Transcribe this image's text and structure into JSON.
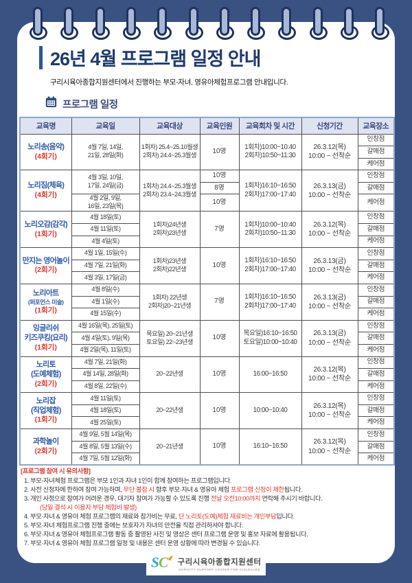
{
  "header": {
    "title": "26년 4월 프로그램 일정 안내",
    "subtitle": "구리시육아종합지원센터에서 진행하는 부모-자녀, 영유아체험프로그램 안내입니다.",
    "section_title": "프로그램 일정"
  },
  "colors": {
    "background_navy": "#3A5282",
    "title_navy": "#1E3A6E",
    "program_blue": "#2E5CA8",
    "alert_red": "#E2362B",
    "table_header_bg": "#DEE3F1"
  },
  "table": {
    "headers": [
      "교육명",
      "교육일",
      "교육대상",
      "교육인원",
      "교육회차 및 시간",
      "신청기간",
      "교육장소"
    ],
    "locations": [
      "인창점",
      "갈매점",
      "케어점"
    ],
    "rows": [
      {
        "name": "노리송(음악)",
        "session": "(4회기)",
        "dates": [
          "4월 7일, 14일,\n21일, 28일(화)"
        ],
        "target": "1회차) 25.4~25.10월생\n2회차) 24.4~25.3월생",
        "capacity": [
          "10명"
        ],
        "time": "1회차)10:00~10:40\n2회차)10:50~11:30",
        "apply": "26.3.12(목)\n10:00 ~ 선착순"
      },
      {
        "name": "노리짐(체육)",
        "session": "(4회기)",
        "dates": [
          "4월 3일, 10일,\n17일, 24일(금)",
          "4월 2일, 9일,\n16일, 23일(목)"
        ],
        "target": "1회차) 24.4~25.3월생\n2회차) 23.4~24.3월생",
        "capacity": [
          "10명",
          "8명",
          "10명"
        ],
        "time": "1회차)16:10~16:50\n2회차)17:00~17:40",
        "apply": "26.3.13(금)\n10:00 ~ 선착순"
      },
      {
        "name": "노리오감(감각)",
        "session": "(1회기)",
        "dates": [
          "4월 18일(토)",
          "4월 11일(토)",
          "4월 4일(토)"
        ],
        "target": "1회차)24년생\n2회차)23년생",
        "capacity": [
          "7명"
        ],
        "time": "1회차)10:00~10:40\n2회차)10:50~11:30",
        "apply": "26.3.12(목)\n10:00 ~ 선착순"
      },
      {
        "name": "만지는 영어놀이",
        "session": "(2회기)",
        "dates": [
          "4월 1일, 15일(수)",
          "4월 7일, 21일(화)",
          "4월 3일, 17일(금)"
        ],
        "target": "1회차)23년생\n2회차)22년생",
        "capacity": [
          "10명"
        ],
        "time": "1회차)16:10~16:50\n2회차)17:00~17:40",
        "apply": "26.3.13(금)\n10:00 ~ 선착순"
      },
      {
        "name": "노리아트",
        "name_small": "(퍼포먼스 미술)",
        "session": "(1회기)",
        "dates": [
          "4월 8일(수)",
          "4월 1일(수)",
          "4월 15일(수)"
        ],
        "target": "1회차) 22년생\n2회차)20~21년생",
        "capacity": [
          "7명"
        ],
        "time": "1회차)16:10~16:50\n2회차)17:00~17:40",
        "apply": "26.3.13(금)\n10:00 ~ 선착순"
      },
      {
        "name": "잉글리쉬\n키즈쿠킹(요리)",
        "session": "(1회기)",
        "dates": [
          "4월 16일(목), 25일(토)",
          "4월 4일(토), 9일(목)",
          "4월 2일(목), 11일(토)"
        ],
        "target": "목요일) 20~21년생\n토요일) 22~23년생",
        "capacity": [
          "10명"
        ],
        "time": "목요일)16:10~16:50\n토요일)10:00~10:40",
        "apply": "26.3.13(금)\n10:00 ~ 선착순"
      },
      {
        "name": "노리토\n(도예체험)",
        "session": "(2회기)",
        "dates": [
          "4월 7일, 21일(화)",
          "4월 14일, 28일(화)",
          "4월 8일, 22일(수)"
        ],
        "target": "20~22년생",
        "capacity": [
          "10명"
        ],
        "time": "16:00~16:50",
        "apply": "26.3.12(목)\n10:00 ~ 선착순"
      },
      {
        "name": "노리잡\n(직업체험)",
        "session": "(1회기)",
        "dates": [
          "4월 11일(토)",
          "4월 18일(토)",
          "4월 25일(토)"
        ],
        "target": "20~22년생",
        "capacity": [
          "10명"
        ],
        "time": "10:00~10:40",
        "apply": "26.3.12(목)\n10:00 ~ 선착순"
      },
      {
        "name": "과학놀이",
        "session": "(2회기)",
        "dates": [
          "4월 9일, 5월 14일(목)",
          "4월 8일, 5월 13일(수)",
          "4월 7일, 5월 12일(화)"
        ],
        "target": "20~21년생",
        "capacity": [
          "10명"
        ],
        "time": "16:10~16:50",
        "apply": "26.3.12(목)\n10:00 ~ 선착순"
      }
    ]
  },
  "notes": {
    "heading": "[프로그램 참여 시 유의사항]",
    "items": [
      [
        {
          "t": "1. 부모-자녀체험 프로그램은 부모 1인과 자녀 1인이 함께 참여하는 프로그램입니다."
        }
      ],
      [
        {
          "t": "2. 사전 신청자에 한하여 참여 가능하며, "
        },
        {
          "t": "무단 불참 시",
          "red": true
        },
        {
          "t": " 향후 부모·자녀 & 영유아 체험 "
        },
        {
          "t": "프로그램 신청이 제한",
          "red": true
        },
        {
          "t": "됩니다."
        }
      ],
      [
        {
          "t": "3. 개인 사정으로 참여가 어려운 경우, 대기자 참여가 가능할 수 있도록 진행 "
        },
        {
          "t": "전날 오전10:00까지",
          "red": true
        },
        {
          "t": " 연락해 주시기 바랍니다."
        }
      ],
      [
        {
          "t": "(당일 결석 시 이용자 부담 체험비 발생)",
          "red": true
        }
      ],
      [
        {
          "t": "4. 부모·자녀 & 영유아 체험 프로그램의 재료와 참가비는 무료, "
        },
        {
          "t": "단 노리토(도예)체험 재료비는 개인부담",
          "red": true
        },
        {
          "t": "입니다."
        }
      ],
      [
        {
          "t": "5. 부모·자녀 체험프로그램 진행 중에는 보호자가 자녀의 안전을 직접 관리하셔야 합니다."
        }
      ],
      [
        {
          "t": "6. 부모·자녀 & 영유아 체험프로그램 활동 중 촬영된 사진 및 영상은 센터 프로그램 운영 및 홍보 자료에 활용됩니다."
        }
      ],
      [
        {
          "t": "7. 부모·자녀 & 영유아 체험 프로그램 일정 및 내용은 센터 운영 상황에 따라 변경될 수 있습니다."
        }
      ]
    ]
  },
  "footer": {
    "org_name": "구리시육아종합지원센터",
    "org_sub": "GURICITY SUPPORT CENTER FOR CHILDCARE"
  }
}
